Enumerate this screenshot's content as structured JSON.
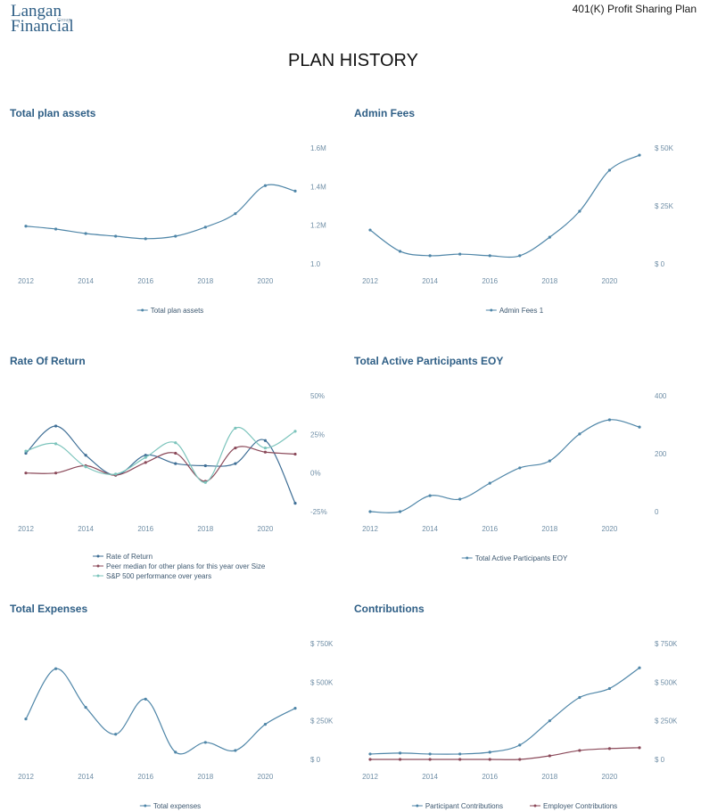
{
  "header": {
    "logo_top": "Langan",
    "logo_small": "Group",
    "logo_bottom": "Financial",
    "plan": "401(K) Profit Sharing Plan",
    "title": "PLAN HISTORY"
  },
  "chart_data": [
    {
      "type": "line",
      "title": "Total plan assets",
      "x": [
        2012,
        2013,
        2014,
        2015,
        2016,
        2017,
        2018,
        2019,
        2020,
        2021
      ],
      "xlim": [
        2012,
        2021
      ],
      "xticks": [
        2012,
        2014,
        2016,
        2018,
        2020
      ],
      "ylim": [
        1.0,
        1.6
      ],
      "yticks": [
        {
          "value": 1.6,
          "label": "1.6M"
        },
        {
          "value": 1.4,
          "label": "1.4M"
        },
        {
          "value": 1.2,
          "label": "1.2M"
        },
        {
          "value": 1.0,
          "label": "1.0"
        }
      ],
      "series": [
        {
          "name": "Total plan assets",
          "color": "#4f86a8",
          "values": [
            1.195,
            1.18,
            1.157,
            1.143,
            1.13,
            1.143,
            1.19,
            1.26,
            1.405,
            1.377
          ]
        }
      ]
    },
    {
      "type": "line",
      "title": "Admin Fees",
      "x": [
        2012,
        2013,
        2014,
        2015,
        2016,
        2017,
        2018,
        2019,
        2020,
        2021
      ],
      "xlim": [
        2012,
        2021
      ],
      "xticks": [
        2012,
        2014,
        2016,
        2018,
        2020
      ],
      "ylim": [
        0,
        50
      ],
      "yticks": [
        {
          "value": 50,
          "label": "$ 50K"
        },
        {
          "value": 25,
          "label": "$ 25K"
        },
        {
          "value": 0,
          "label": "$ 0"
        }
      ],
      "series": [
        {
          "name": "Admin Fees 1",
          "color": "#4f86a8",
          "values": [
            14.6,
            5.4,
            3.5,
            4.2,
            3.5,
            3.5,
            11.5,
            22.7,
            40.4,
            46.9
          ]
        }
      ]
    },
    {
      "type": "line",
      "title": "Rate Of Return",
      "x": [
        2012,
        2013,
        2014,
        2015,
        2016,
        2017,
        2018,
        2019,
        2020,
        2021
      ],
      "xlim": [
        2012,
        2021
      ],
      "xticks": [
        2012,
        2014,
        2016,
        2018,
        2020
      ],
      "ylim": [
        -25,
        50
      ],
      "yticks": [
        {
          "value": 50,
          "label": "50%"
        },
        {
          "value": 25,
          "label": "25%"
        },
        {
          "value": 0,
          "label": "0%"
        },
        {
          "value": -25,
          "label": "-25%"
        }
      ],
      "series": [
        {
          "name": "Rate of Return",
          "color": "#3f6f96",
          "values": [
            12.8,
            30.4,
            11.5,
            -1.4,
            11.5,
            6.1,
            4.7,
            6.1,
            21,
            -19.6
          ]
        },
        {
          "name": "Peer median for other plans for this year over Size",
          "color": "#8b4a5a",
          "values": [
            0,
            0,
            4.7,
            -1.4,
            6.8,
            12.8,
            -5.4,
            16.2,
            13.5,
            12.2
          ]
        },
        {
          "name": "S&P 500 performance over years",
          "color": "#7cc4bc",
          "values": [
            14.2,
            18.9,
            4,
            -0.7,
            10.1,
            19.6,
            -6.1,
            29,
            16.2,
            27
          ]
        }
      ]
    },
    {
      "type": "line",
      "title": "Total Active Participants EOY",
      "x": [
        2012,
        2013,
        2014,
        2015,
        2016,
        2017,
        2018,
        2019,
        2020,
        2021
      ],
      "xlim": [
        2012,
        2021
      ],
      "xticks": [
        2012,
        2014,
        2016,
        2018,
        2020
      ],
      "ylim": [
        0,
        400
      ],
      "yticks": [
        400,
        200,
        0
      ],
      "series": [
        {
          "name": "Total Active Participants EOY",
          "color": "#4f86a8",
          "values": [
            0,
            0,
            55,
            43,
            98,
            151,
            175,
            268,
            317,
            292
          ]
        }
      ]
    },
    {
      "type": "line",
      "title": "Total Expenses",
      "x": [
        2012,
        2013,
        2014,
        2015,
        2016,
        2017,
        2018,
        2019,
        2020,
        2021
      ],
      "xlim": [
        2012,
        2021
      ],
      "xticks": [
        2012,
        2014,
        2016,
        2018,
        2020
      ],
      "ylim": [
        0,
        750
      ],
      "yticks": [
        {
          "value": 750,
          "label": "$ 750K"
        },
        {
          "value": 500,
          "label": "$ 500K"
        },
        {
          "value": 250,
          "label": "$ 250K"
        },
        {
          "value": 0,
          "label": "$ 0"
        }
      ],
      "series": [
        {
          "name": "Total expenses",
          "color": "#4f86a8",
          "values": [
            262,
            587,
            337,
            163,
            390,
            47,
            110,
            58,
            227,
            331
          ]
        }
      ]
    },
    {
      "type": "line",
      "title": "Contributions",
      "x": [
        2012,
        2013,
        2014,
        2015,
        2016,
        2017,
        2018,
        2019,
        2020,
        2021
      ],
      "xlim": [
        2012,
        2021
      ],
      "xticks": [
        2012,
        2014,
        2016,
        2018,
        2020
      ],
      "ylim": [
        0,
        750
      ],
      "yticks": [
        {
          "value": 750,
          "label": "$ 750K"
        },
        {
          "value": 500,
          "label": "$ 500K"
        },
        {
          "value": 250,
          "label": "$ 250K"
        },
        {
          "value": 0,
          "label": "$ 0"
        }
      ],
      "series": [
        {
          "name": "Participant Contributions",
          "color": "#4f86a8",
          "values": [
            35,
            41,
            35,
            35,
            47,
            93,
            250,
            401,
            459,
            593
          ]
        },
        {
          "name": "Employer Contributions",
          "color": "#8b4a5a",
          "values": [
            0,
            0,
            0,
            0,
            0,
            0,
            23,
            58,
            70,
            76
          ]
        }
      ]
    }
  ]
}
